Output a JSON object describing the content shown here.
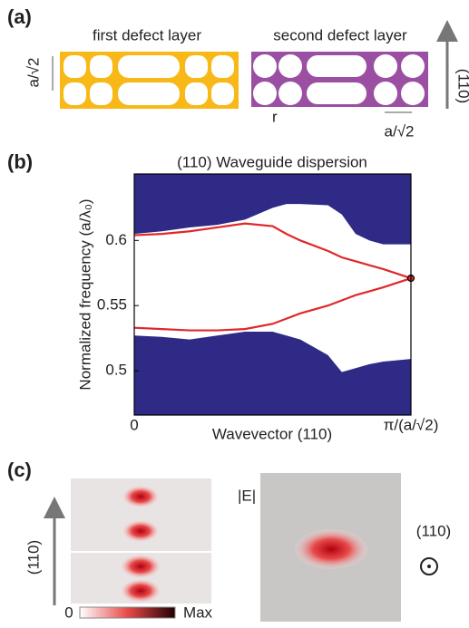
{
  "panels": {
    "a": {
      "label": "(a)",
      "first": "first defect layer",
      "second": "second defect layer",
      "period_left": "a/√2",
      "radius": "r",
      "period_right": "a/√2",
      "direction": "(110)"
    },
    "c": {
      "label": "(c)",
      "field": "|E|",
      "direction_left": "(110)",
      "direction_right": "(110)",
      "scale_min": "0",
      "scale_max": "Max"
    }
  },
  "chart_data": {
    "type": "line",
    "panel_label": "(b)",
    "title": "(110) Waveguide dispersion",
    "xlabel": "Wavevector (110)",
    "ylabel": "Normalized frequency (a/λ₀)",
    "x": [
      0,
      0.1,
      0.2,
      0.3,
      0.4,
      0.5,
      0.55,
      0.6,
      0.7,
      0.75,
      0.8,
      0.85,
      0.9,
      1.0
    ],
    "xlim": [
      0,
      1
    ],
    "xticks": [
      {
        "value": 0,
        "label": "0"
      },
      {
        "value": 1,
        "label": "π/(a/√2)"
      }
    ],
    "ylim": [
      0.466,
      0.651
    ],
    "yticks": [
      0.5,
      0.55,
      0.6
    ],
    "series": [
      {
        "color": "#2e2a86",
        "fill": "top",
        "values": [
          0.605,
          0.607,
          0.61,
          0.612,
          0.616,
          0.625,
          0.628,
          0.628,
          0.627,
          0.62,
          0.605,
          0.6,
          0.597,
          0.597
        ]
      },
      {
        "color": "#2e2a86",
        "fill": "bottom",
        "values": [
          0.527,
          0.526,
          0.524,
          0.527,
          0.53,
          0.53,
          0.527,
          0.524,
          0.512,
          0.499,
          0.502,
          0.505,
          0.507,
          0.509
        ]
      },
      {
        "color": "#e0282a",
        "values": [
          0.604,
          0.605,
          0.607,
          0.61,
          0.613,
          0.611,
          0.605,
          0.6,
          0.592,
          0.587,
          0.584,
          0.581,
          0.578,
          0.571
        ]
      },
      {
        "color": "#e0282a",
        "values": [
          0.533,
          0.532,
          0.531,
          0.531,
          0.532,
          0.536,
          0.54,
          0.544,
          0.55,
          0.554,
          0.558,
          0.561,
          0.564,
          0.571
        ]
      }
    ],
    "points": [
      {
        "x": 1,
        "y": 0.571
      }
    ]
  }
}
